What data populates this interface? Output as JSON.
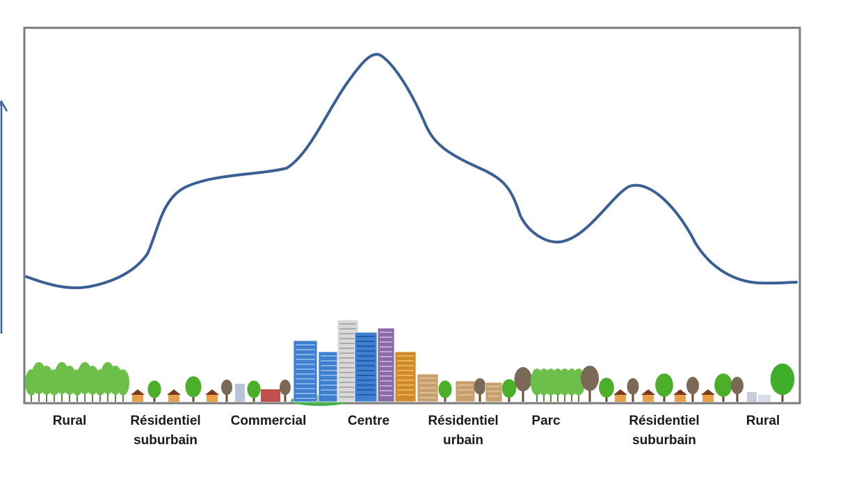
{
  "colors": {
    "curve": "#3a5f95",
    "axis_arrow": "#3a5f95",
    "frame": "#7a7a7a",
    "tree_green": "#4caf2a",
    "tree_dark": "#2e7d1f",
    "trunk": "#6b4a2b",
    "dead_tree": "#7a6a55",
    "house_roof": "#7a3b1e",
    "house_wall": "#e8a04a",
    "tower_blue": "#3f7fd0",
    "tower_purple": "#8a6aa8",
    "tower_orange": "#d08a2a",
    "tower_grey": "#d8d8d8",
    "tower_tan": "#c8a070"
  },
  "zones": [
    {
      "line1": "Rural",
      "line2": ""
    },
    {
      "line1": "Résidentiel",
      "line2": "suburbain"
    },
    {
      "line1": "Commercial",
      "line2": ""
    },
    {
      "line1": "Centre",
      "line2": ""
    },
    {
      "line1": "Résidentiel",
      "line2": "urbain"
    },
    {
      "line1": "Parc",
      "line2": ""
    },
    {
      "line1": "Résidentiel",
      "line2": "suburbain"
    },
    {
      "line1": "Rural",
      "line2": ""
    }
  ],
  "icons": {
    "curve": "density-curve",
    "axis": "vertical-arrow-icon",
    "trees": "tree-icon",
    "houses": "house-icon",
    "towers": "skyscraper-icon"
  }
}
